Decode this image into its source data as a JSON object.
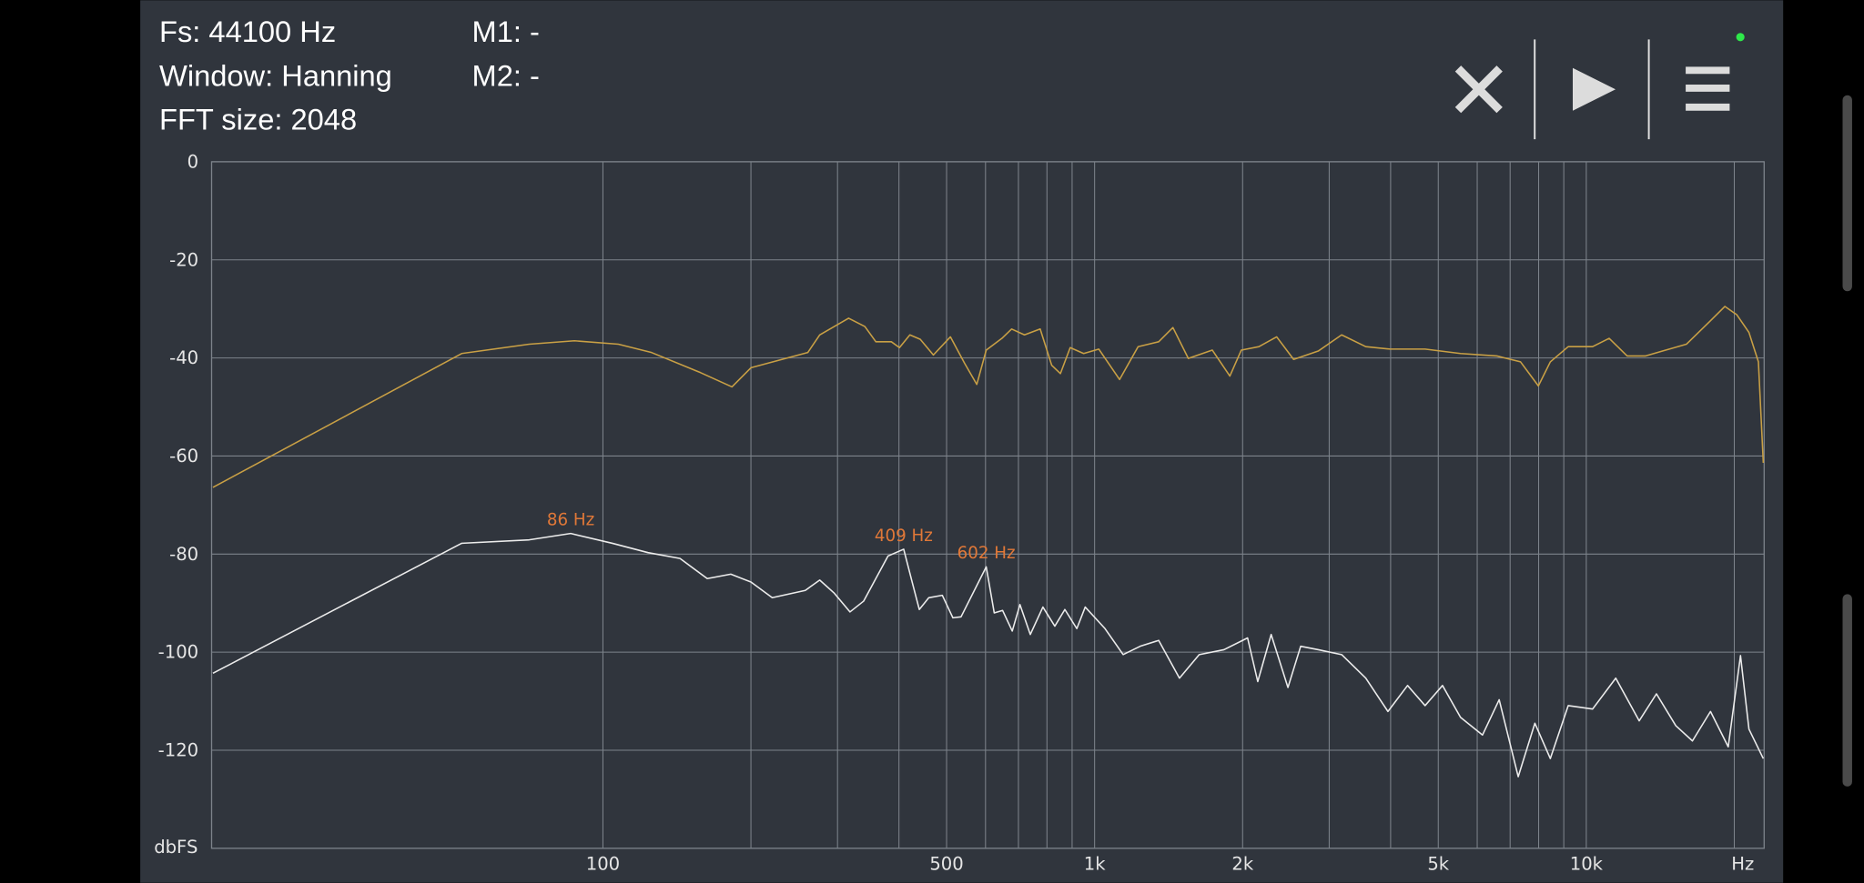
{
  "header": {
    "fs": "Fs: 44100 Hz",
    "window": "Window: Hanning",
    "fft_size": "FFT size: 2048",
    "m1": "M1: -",
    "m2": "M2: -"
  },
  "chart_data": {
    "type": "line",
    "x_label": "Hz",
    "y_label": "dbFS",
    "xscale": "log",
    "grid": true,
    "xlim": [
      16,
      23000
    ],
    "ylim": [
      -140,
      0
    ],
    "xticks": [
      100,
      500,
      {
        "value": 1000,
        "label": "1k"
      },
      {
        "value": 2000,
        "label": "2k"
      },
      {
        "value": 5000,
        "label": "5k"
      },
      {
        "value": 10000,
        "label": "10k"
      }
    ],
    "xgrid": [
      100,
      200,
      300,
      400,
      500,
      600,
      700,
      800,
      900,
      1000,
      2000,
      3000,
      4000,
      5000,
      6000,
      7000,
      8000,
      9000,
      10000,
      20000
    ],
    "yticks": [
      0,
      -20,
      -40,
      -60,
      -80,
      -100,
      -120
    ],
    "series": [
      {
        "color": "#c9a045",
        "x": [
          16.1,
          51.6,
          70.8,
          87.5,
          107.5,
          125.6,
          158,
          183,
          200,
          261,
          276,
          316,
          341,
          359,
          386,
          401,
          421,
          442,
          470,
          509,
          544,
          576,
          602,
          648,
          678,
          720,
          775,
          818,
          852,
          892,
          950,
          1020,
          1124,
          1226,
          1350,
          1443,
          1551,
          1735,
          1884,
          1988,
          2159,
          2346,
          2540,
          2850,
          3180,
          3560,
          3990,
          4700,
          5550,
          6580,
          7350,
          7990,
          8450,
          9190,
          10300,
          11130,
          12110,
          13180,
          14290,
          15980,
          17890,
          19140,
          20240,
          21420,
          22390,
          22910
        ],
        "values": [
          -66.4,
          -39.1,
          -37.2,
          -36.5,
          -37.2,
          -38.9,
          -43,
          -45.9,
          -42,
          -38.9,
          -35.3,
          -31.9,
          -33.6,
          -36.7,
          -36.7,
          -37.9,
          -35.3,
          -36.2,
          -39.4,
          -35.7,
          -41.1,
          -45.4,
          -38.4,
          -36,
          -34.1,
          -35.3,
          -34.1,
          -41.5,
          -43.2,
          -37.9,
          -39.1,
          -38.2,
          -44.4,
          -37.7,
          -36.7,
          -33.8,
          -40.1,
          -38.4,
          -43.7,
          -38.4,
          -37.7,
          -35.7,
          -40.3,
          -38.6,
          -35.3,
          -37.7,
          -38.2,
          -38.2,
          -39.1,
          -39.6,
          -40.8,
          -45.7,
          -40.8,
          -37.7,
          -37.7,
          -36,
          -39.6,
          -39.6,
          -38.6,
          -37.2,
          -32.4,
          -29.5,
          -31.2,
          -34.8,
          -40.8,
          -61.4
        ]
      },
      {
        "color": "#ececec",
        "x": [
          16.1,
          51.6,
          70.8,
          86,
          104.5,
          123.5,
          143.5,
          163,
          182,
          200,
          221,
          258,
          276,
          295,
          318,
          339,
          380,
          409,
          425,
          440,
          460,
          490,
          515,
          535,
          602,
          625,
          650,
          680,
          705,
          740,
          785,
          830,
          870,
          920,
          957,
          1050,
          1143,
          1238,
          1350,
          1488,
          1632,
          1833,
          2047,
          2147,
          2286,
          2473,
          2625,
          2850,
          3180,
          3560,
          3950,
          4330,
          4700,
          5100,
          5550,
          6150,
          6650,
          7270,
          7860,
          8450,
          9190,
          10300,
          11480,
          12810,
          13890,
          15210,
          16440,
          17890,
          19440,
          20590,
          21420,
          22910
        ],
        "values": [
          -104.3,
          -77.8,
          -77.1,
          -75.8,
          -77.8,
          -79.7,
          -80.9,
          -85,
          -84.1,
          -85.7,
          -88.9,
          -87.4,
          -85.3,
          -87.9,
          -91.8,
          -89.6,
          -80.4,
          -79,
          -85.5,
          -91.3,
          -88.9,
          -88.4,
          -93,
          -92.8,
          -82.6,
          -92,
          -91.5,
          -95.7,
          -90.3,
          -96.4,
          -90.8,
          -94.7,
          -91.3,
          -95.2,
          -90.8,
          -95.2,
          -100.5,
          -98.8,
          -97.6,
          -105.3,
          -100.5,
          -99.5,
          -97.1,
          -106,
          -96.4,
          -107.2,
          -98.8,
          -99.5,
          -100.5,
          -105.3,
          -112.1,
          -106.8,
          -110.9,
          -106.8,
          -113.3,
          -116.9,
          -109.7,
          -125.4,
          -114.5,
          -121.7,
          -110.9,
          -111.6,
          -105.3,
          -114,
          -108.5,
          -115,
          -118.1,
          -112.1,
          -119.3,
          -100.7,
          -115.7,
          -121.7
        ]
      }
    ],
    "annotation_color": "#e07838",
    "annotations": [
      {
        "text": "86 Hz",
        "x": 86,
        "y": -75.8
      },
      {
        "text": "409 Hz",
        "x": 409,
        "y": -79
      },
      {
        "text": "602 Hz",
        "x": 602,
        "y": -82.6
      }
    ]
  }
}
